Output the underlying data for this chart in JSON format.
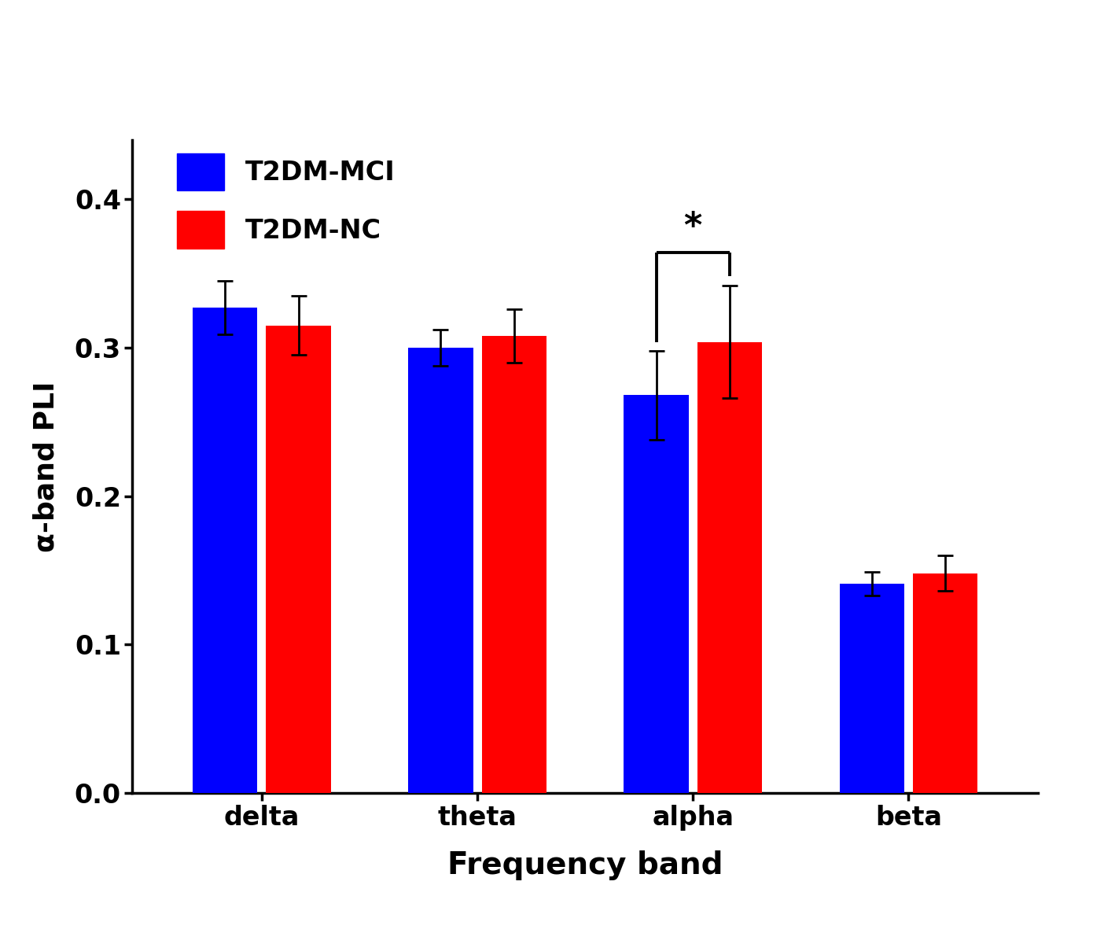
{
  "categories": [
    "delta",
    "theta",
    "alpha",
    "beta"
  ],
  "mci_values": [
    0.327,
    0.3,
    0.268,
    0.141
  ],
  "nc_values": [
    0.315,
    0.308,
    0.304,
    0.148
  ],
  "mci_errors": [
    0.018,
    0.012,
    0.03,
    0.008
  ],
  "nc_errors": [
    0.02,
    0.018,
    0.038,
    0.012
  ],
  "mci_color": "#0000FF",
  "nc_color": "#FF0000",
  "ylabel": "α-band PLI",
  "xlabel": "Frequency band",
  "ylim": [
    0,
    0.44
  ],
  "yticks": [
    0.0,
    0.1,
    0.2,
    0.3,
    0.4
  ],
  "legend_labels": [
    "T2DM-MCI",
    "T2DM-NC"
  ],
  "bar_width": 0.3,
  "bar_gap": 0.04,
  "sig_group_idx": 2,
  "sig_label": "*",
  "background_color": "#FFFFFF"
}
